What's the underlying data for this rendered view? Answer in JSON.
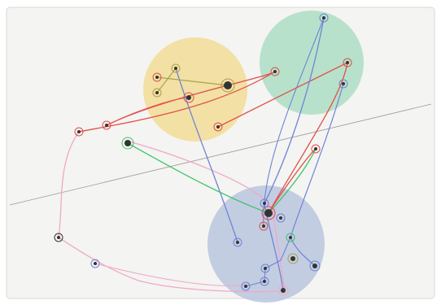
{
  "palette": {
    "paper": "#f4f4f2",
    "circle_yellow": "#f3d98a",
    "circle_green": "#a9dcc0",
    "circle_blue": "#b7c3dc",
    "line_red": "#e0504a",
    "line_blue": "#6f84d6",
    "line_pink": "#f0a8c8",
    "line_green": "#3ec46a",
    "line_olive": "#a7a34a",
    "pencil": "#9a9a9a",
    "dot_dark": "#333333"
  }
}
